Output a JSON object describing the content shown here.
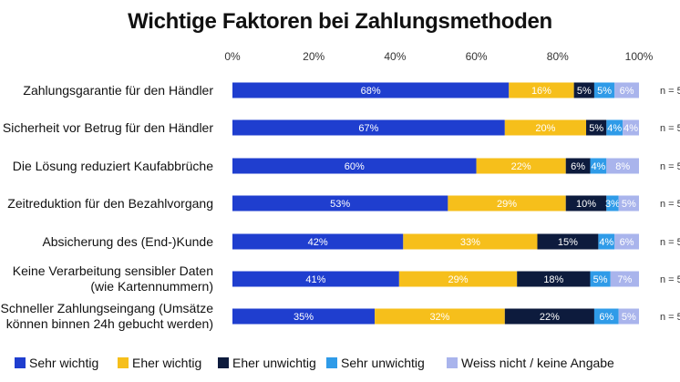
{
  "chart_data": {
    "type": "bar",
    "stacked": true,
    "orientation": "horizontal",
    "title": "Wichtige Faktoren bei Zahlungsmethoden",
    "xlim": [
      0,
      100
    ],
    "ticks": [
      "0%",
      "20%",
      "40%",
      "60%",
      "80%",
      "100%"
    ],
    "tick_values": [
      0,
      20,
      40,
      60,
      80,
      100
    ],
    "categories": [
      [
        "Zahlungsgarantie für den Händler"
      ],
      [
        "Sicherheit vor Betrug für den Händler"
      ],
      [
        "Die Lösung reduziert Kaufabbrüche"
      ],
      [
        "Zeitreduktion für den Bezahlvorgang"
      ],
      [
        "Absicherung des (End-)Kunde"
      ],
      [
        "Keine Verarbeitung sensibler Daten",
        "(wie Kartennummern)"
      ],
      [
        "Schneller Zahlungseingang (Umsätze",
        "können binnen 24h gebucht werden)"
      ]
    ],
    "n_labels": [
      "n = 5",
      "n = 5",
      "n = 5",
      "n = 5",
      "n = 5",
      "n = 5",
      "n = 5"
    ],
    "series": [
      {
        "name": "Sehr wichtig",
        "color": "#1f3ecf",
        "text_color": "#ffffff",
        "values": [
          68,
          67,
          60,
          53,
          42,
          41,
          35
        ],
        "labels": [
          "68%",
          "67%",
          "60%",
          "53%",
          "42%",
          "41%",
          "35%"
        ]
      },
      {
        "name": "Eher wichtig",
        "color": "#f6bf1b",
        "text_color": "#ffffff",
        "values": [
          16,
          20,
          22,
          29,
          33,
          29,
          32
        ],
        "labels": [
          "16%",
          "20%",
          "22%",
          "29%",
          "33%",
          "29%",
          "32%"
        ]
      },
      {
        "name": "Eher unwichtig",
        "color": "#0d1b3d",
        "text_color": "#ffffff",
        "values": [
          5,
          5,
          6,
          10,
          15,
          18,
          22
        ],
        "labels": [
          "5%",
          "5%",
          "6%",
          "10%",
          "15%",
          "18%",
          "22%"
        ]
      },
      {
        "name": "Sehr unwichtig",
        "color": "#2f9be8",
        "text_color": "#ffffff",
        "values": [
          5,
          4,
          4,
          3,
          4,
          5,
          6
        ],
        "labels": [
          "5%",
          "4%",
          "4%",
          "3%",
          "4%",
          "5%",
          "6%"
        ]
      },
      {
        "name": "Weiss nicht / keine Angabe",
        "color": "#a9b4ec",
        "text_color": "#ffffff",
        "values": [
          6,
          4,
          8,
          5,
          6,
          7,
          5
        ],
        "labels": [
          "6%",
          "4%",
          "8%",
          "5%",
          "6%",
          "7%",
          "5%"
        ]
      }
    ]
  }
}
